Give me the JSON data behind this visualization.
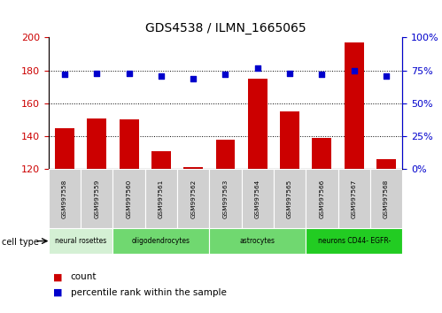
{
  "title": "GDS4538 / ILMN_1665065",
  "samples": [
    "GSM997558",
    "GSM997559",
    "GSM997560",
    "GSM997561",
    "GSM997562",
    "GSM997563",
    "GSM997564",
    "GSM997565",
    "GSM997566",
    "GSM997567",
    "GSM997568"
  ],
  "counts": [
    145,
    151,
    150,
    131,
    121,
    138,
    175,
    155,
    139,
    197,
    126
  ],
  "percentiles": [
    72,
    73,
    73,
    71,
    69,
    72,
    77,
    73,
    72,
    75,
    71
  ],
  "cell_types": [
    {
      "label": "neural rosettes",
      "start": 0,
      "end": 2,
      "color": "#d4f0d4"
    },
    {
      "label": "oligodendrocytes",
      "start": 2,
      "end": 5,
      "color": "#70d870"
    },
    {
      "label": "astrocytes",
      "start": 5,
      "end": 8,
      "color": "#70d870"
    },
    {
      "label": "neurons CD44- EGFR-",
      "start": 8,
      "end": 11,
      "color": "#22cc22"
    }
  ],
  "ylim_left": [
    120,
    200
  ],
  "ylim_right": [
    0,
    100
  ],
  "bar_color": "#cc0000",
  "scatter_color": "#0000cc",
  "tick_color_left": "#cc0000",
  "tick_color_right": "#0000cc",
  "bar_width": 0.6,
  "sample_box_color": "#d0d0d0",
  "legend_count_color": "#cc0000",
  "legend_pct_color": "#0000cc"
}
